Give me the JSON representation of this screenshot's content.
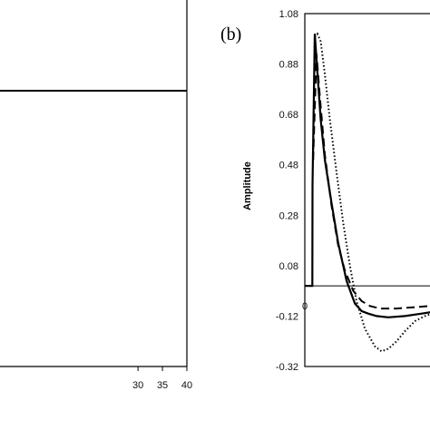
{
  "chart_data": [
    {
      "panel": "a",
      "type": "line",
      "xlim": [
        0,
        40
      ],
      "x_ticks": [
        "30",
        "35",
        "40"
      ],
      "x_tick_values": [
        30,
        35,
        40
      ],
      "series": [
        {
          "style": "solid",
          "x": [
            0,
            40
          ],
          "y": [
            1.0,
            1.0
          ]
        }
      ]
    },
    {
      "panel": "b",
      "panel_label": "(b)",
      "type": "line",
      "ylabel": "Amplitude",
      "ylim": [
        -0.32,
        1.08
      ],
      "y_ticks": [
        "1.08",
        "0.88",
        "0.68",
        "0.48",
        "0.28",
        "0.08",
        "-0.12",
        "-0.32"
      ],
      "y_tick_values": [
        1.08,
        0.88,
        0.68,
        0.48,
        0.28,
        0.08,
        -0.12,
        -0.32
      ],
      "x_tick_label": "0",
      "xlim": [
        0,
        10
      ],
      "series": [
        {
          "style": "solid",
          "x": [
            0,
            0.45,
            0.46,
            0.6,
            0.75,
            0.95,
            1.2,
            1.6,
            2.0,
            2.5,
            3.0,
            3.4,
            3.8,
            4.3,
            5.0,
            6.0,
            7.0,
            8.0,
            9.0,
            10
          ],
          "y": [
            0.0,
            0.0,
            0.4,
            1.0,
            0.85,
            0.66,
            0.5,
            0.33,
            0.17,
            0.02,
            -0.07,
            -0.1,
            -0.11,
            -0.12,
            -0.125,
            -0.12,
            -0.11,
            -0.1,
            -0.1,
            -0.1
          ]
        },
        {
          "style": "dashed",
          "x": [
            0.5,
            0.7,
            0.9,
            1.2,
            1.6,
            2.0,
            2.4,
            2.9,
            3.4,
            3.9,
            4.5,
            5.5,
            6.5,
            7.5,
            8.5,
            10
          ],
          "y": [
            0.5,
            0.92,
            0.75,
            0.52,
            0.32,
            0.16,
            0.06,
            -0.02,
            -0.06,
            -0.08,
            -0.09,
            -0.09,
            -0.085,
            -0.08,
            -0.075,
            -0.06
          ]
        },
        {
          "style": "dotted",
          "x": [
            0.5,
            0.6,
            0.75,
            0.95,
            1.2,
            1.5,
            1.9,
            2.3,
            2.7,
            3.1,
            3.6,
            4.2,
            4.6,
            5.0,
            5.5,
            6.0,
            6.6,
            7.2,
            8.0,
            8.8,
            10
          ],
          "y": [
            0.5,
            0.99,
            1.0,
            0.97,
            0.84,
            0.66,
            0.45,
            0.25,
            0.08,
            -0.06,
            -0.17,
            -0.24,
            -0.26,
            -0.25,
            -0.22,
            -0.18,
            -0.14,
            -0.12,
            -0.1,
            -0.09,
            -0.08
          ]
        }
      ]
    }
  ]
}
